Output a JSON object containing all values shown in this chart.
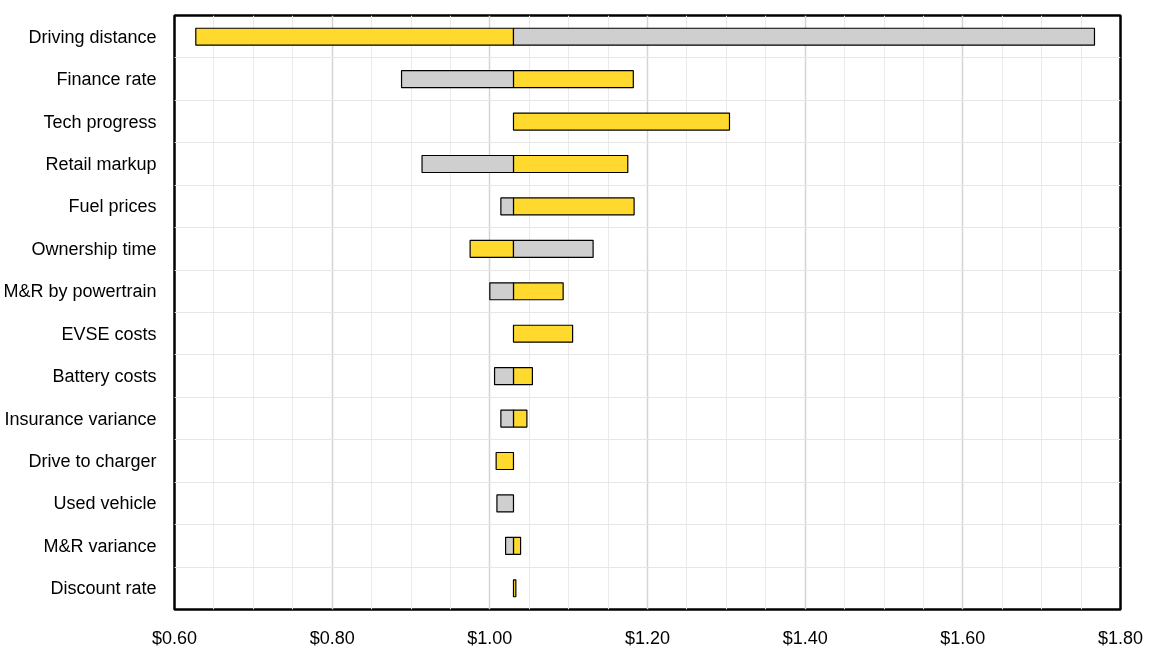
{
  "chart_data": {
    "type": "bar",
    "orientation": "horizontal",
    "grid": true,
    "categories": [
      "Driving distance",
      "Finance rate",
      "Tech progress",
      "Retail markup",
      "Fuel prices",
      "Ownership time",
      "M&R by powertrain",
      "EVSE costs",
      "Battery costs",
      "Insurance variance",
      "Drive to charger",
      "Used vehicle",
      "M&R variance",
      "Discount rate"
    ],
    "xlim": [
      0.6,
      1.8
    ],
    "xticks": [
      {
        "value": 0.6,
        "label": "$0.60"
      },
      {
        "value": 0.8,
        "label": "$0.80"
      },
      {
        "value": 1.0,
        "label": "$1.00"
      },
      {
        "value": 1.2,
        "label": "$1.20"
      },
      {
        "value": 1.4,
        "label": "$1.40"
      },
      {
        "value": 1.6,
        "label": "$1.60"
      },
      {
        "value": 1.8,
        "label": "$1.80"
      }
    ],
    "series": [
      {
        "color": "#ffd92e",
        "base": [
          1.03,
          1.03,
          1.03,
          1.03,
          1.03,
          1.03,
          1.03,
          1.03,
          1.03,
          1.03,
          1.03,
          null,
          1.03,
          1.03
        ],
        "values": [
          -0.403,
          0.152,
          0.274,
          0.145,
          0.153,
          -0.055,
          0.063,
          0.075,
          0.024,
          0.017,
          -0.022,
          null,
          0.009,
          0.003
        ]
      },
      {
        "color": "#cfcfcf",
        "base": [
          1.03,
          1.03,
          null,
          1.03,
          1.03,
          1.03,
          1.03,
          null,
          1.03,
          1.03,
          null,
          1.03,
          1.03,
          null
        ],
        "values": [
          0.737,
          -0.142,
          null,
          -0.116,
          -0.016,
          0.101,
          -0.03,
          null,
          -0.024,
          -0.016,
          null,
          -0.021,
          -0.01,
          null
        ]
      }
    ]
  }
}
